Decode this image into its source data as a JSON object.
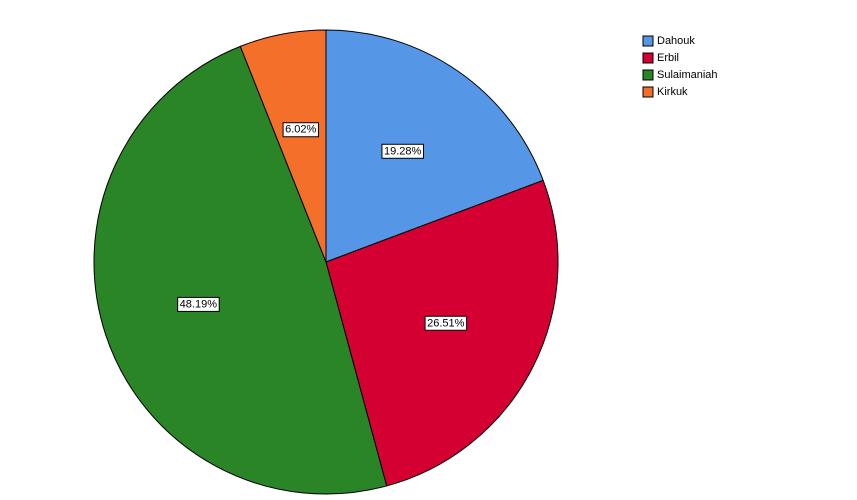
{
  "chart_data": {
    "type": "pie",
    "categories": [
      "Dahouk",
      "Erbil",
      "Sulaimaniah",
      "Kirkuk"
    ],
    "values": [
      19.28,
      26.51,
      48.19,
      6.02
    ],
    "value_labels": [
      "19.28%",
      "26.51%",
      "48.19%",
      "6.02%"
    ],
    "colors": [
      "#5596e6",
      "#d50032",
      "#2a8527",
      "#f36f2a"
    ],
    "legend": "top-right"
  }
}
